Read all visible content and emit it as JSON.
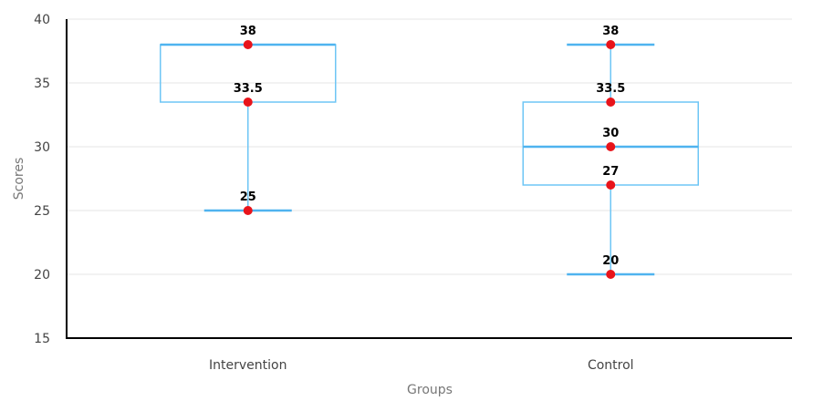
{
  "chart_data": {
    "type": "box",
    "title": "",
    "xlabel": "Groups",
    "ylabel": "Scores",
    "ylim": [
      15,
      40
    ],
    "yticks": [
      15,
      20,
      25,
      30,
      35,
      40
    ],
    "grid": true,
    "categories": [
      "Intervention",
      "Control"
    ],
    "boxes": [
      {
        "category": "Intervention",
        "min": 25,
        "q1": 33.5,
        "median": 38,
        "q3": 38,
        "max": 38
      },
      {
        "category": "Control",
        "min": 20,
        "q1": 27,
        "median": 30,
        "q3": 33.5,
        "max": 38
      }
    ],
    "points": [
      {
        "category": "Intervention",
        "values": [
          38,
          33.5,
          25
        ],
        "labels": [
          "38",
          "33.5",
          "25"
        ]
      },
      {
        "category": "Control",
        "values": [
          38,
          33.5,
          30,
          27,
          20
        ],
        "labels": [
          "38",
          "33.5",
          "30",
          "27",
          "20"
        ]
      }
    ],
    "colors": {
      "box": "#6ec6f5",
      "line": "#4fb3ef",
      "point": "#e8141b",
      "axis": "#000000",
      "grid": "#e6e6e6"
    }
  }
}
